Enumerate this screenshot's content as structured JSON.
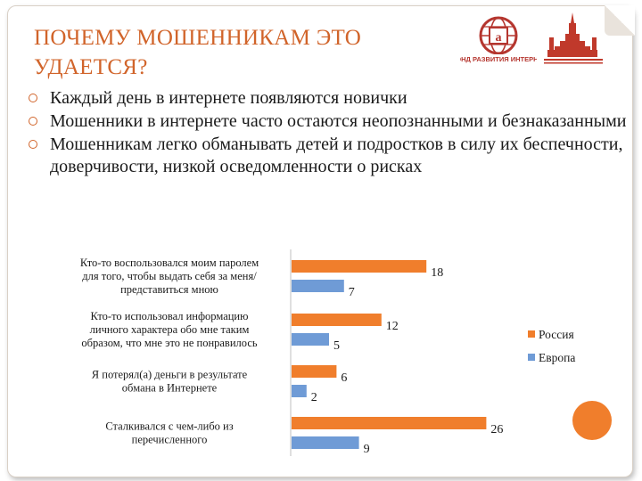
{
  "slide": {
    "title": "ПОЧЕМУ МОШЕННИКАМ ЭТО УДАЕТСЯ?",
    "bullets": [
      "Каждый день в интернете появляются новички",
      "Мошенники в интернете часто остаются неопознанными и безнаказанными",
      "Мошенникам легко обманывать детей и подростков в силу их беспечности, доверчивости, низкой осведомленности о рисках"
    ],
    "logo_left_text": "ФОНД РАЗВИТИЯ ИНТЕРНЕТ",
    "icons": {
      "bullet": "circle-bullet-icon",
      "logo_left": "fond-logo-icon",
      "logo_right": "msu-logo-icon"
    }
  },
  "colors": {
    "accent": "#d1642a",
    "russia": "#f07e2c",
    "europe": "#6f9bd6",
    "text": "#1a1a1a"
  },
  "chart_data": {
    "type": "bar",
    "orientation": "horizontal",
    "categories": [
      "Кто-то воспользовался моим паролем для того, чтобы выдать себя за меня/ представиться мною",
      "Кто-то использовал информацию личного характера обо мне таким образом, что мне это не понравилось",
      "Я потерял(а) деньги в результате обмана в Интернете",
      "Сталкивался с чем-либо из перечисленного"
    ],
    "series": [
      {
        "name": "Россия",
        "values": [
          18,
          12,
          6,
          26
        ]
      },
      {
        "name": "Европа",
        "values": [
          7,
          5,
          2,
          9
        ]
      }
    ],
    "xlim": [
      0,
      30
    ],
    "grid": false,
    "legend": "right",
    "title": "",
    "xlabel": "",
    "ylabel": ""
  }
}
